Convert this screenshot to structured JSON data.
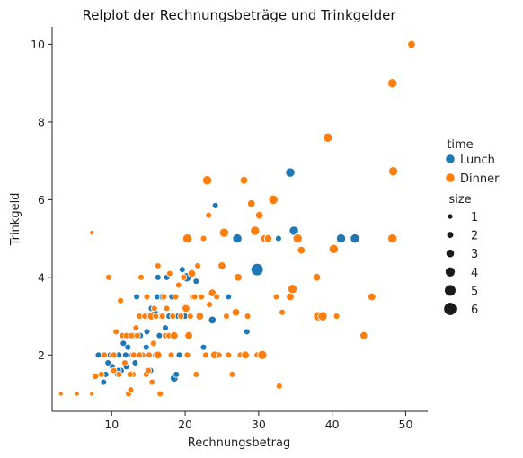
{
  "chart_data": {
    "type": "scatter",
    "title": "Relplot der Rechnungsbeträge und Trinkgelder",
    "xlabel": "Rechnungsbetrag",
    "ylabel": "Trinkgeld",
    "xlim": [
      1.9,
      53.0
    ],
    "ylim": [
      0.55,
      10.45
    ],
    "xticks": [
      10,
      20,
      30,
      40,
      50
    ],
    "yticks": [
      2,
      4,
      6,
      8,
      10
    ],
    "grid": false,
    "legend_position": "right",
    "hue": {
      "title": "time",
      "categories": [
        {
          "name": "Lunch",
          "color": "#1f77b4"
        },
        {
          "name": "Dinner",
          "color": "#ff7f0e"
        }
      ]
    },
    "size_legend": {
      "title": "size",
      "values": [
        1,
        2,
        3,
        4,
        5,
        6
      ]
    },
    "series": [
      {
        "name": "Lunch",
        "points": [
          [
            8.2,
            2.0,
            2
          ],
          [
            8.5,
            1.5,
            2
          ],
          [
            8.9,
            1.3,
            2
          ],
          [
            9.2,
            1.5,
            2
          ],
          [
            9.5,
            1.8,
            2
          ],
          [
            9.8,
            2.0,
            2
          ],
          [
            10.1,
            1.7,
            2
          ],
          [
            10.5,
            2.0,
            2
          ],
          [
            10.8,
            1.5,
            2
          ],
          [
            11.0,
            2.0,
            2
          ],
          [
            11.3,
            1.6,
            2
          ],
          [
            11.6,
            2.3,
            2
          ],
          [
            11.9,
            2.0,
            2
          ],
          [
            12.2,
            2.2,
            2
          ],
          [
            12.5,
            2.5,
            2
          ],
          [
            12.8,
            2.0,
            2
          ],
          [
            13.0,
            2.5,
            2
          ],
          [
            13.2,
            1.8,
            2
          ],
          [
            13.4,
            3.5,
            2
          ],
          [
            13.6,
            2.0,
            2
          ],
          [
            13.9,
            2.5,
            2
          ],
          [
            14.1,
            2.0,
            2
          ],
          [
            14.4,
            3.0,
            2
          ],
          [
            14.7,
            2.2,
            2
          ],
          [
            15.0,
            3.0,
            2
          ],
          [
            15.3,
            1.6,
            2
          ],
          [
            15.6,
            2.3,
            2
          ],
          [
            15.9,
            3.1,
            2
          ],
          [
            16.0,
            2.0,
            2
          ],
          [
            16.2,
            3.5,
            2
          ],
          [
            16.5,
            2.5,
            2
          ],
          [
            16.3,
            4.0,
            2
          ],
          [
            16.7,
            3.0,
            2
          ],
          [
            17.0,
            3.5,
            3
          ],
          [
            17.3,
            2.7,
            2
          ],
          [
            17.5,
            4.0,
            2
          ],
          [
            17.8,
            3.0,
            2
          ],
          [
            18.0,
            2.5,
            2
          ],
          [
            18.2,
            3.5,
            2
          ],
          [
            18.5,
            1.4,
            3
          ],
          [
            18.8,
            1.5,
            2
          ],
          [
            19.0,
            3.0,
            2
          ],
          [
            19.2,
            2.0,
            2
          ],
          [
            19.6,
            4.2,
            2
          ],
          [
            20.0,
            3.0,
            2
          ],
          [
            20.2,
            4.0,
            4
          ],
          [
            20.5,
            2.5,
            2
          ],
          [
            21.0,
            3.5,
            2
          ],
          [
            21.5,
            3.9,
            2
          ],
          [
            22.5,
            2.2,
            2
          ],
          [
            23.7,
            2.9,
            3
          ],
          [
            24.1,
            5.85,
            2
          ],
          [
            25.9,
            3.5,
            2
          ],
          [
            27.1,
            5.0,
            4
          ],
          [
            28.4,
            2.6,
            2
          ],
          [
            29.8,
            4.2,
            6
          ],
          [
            32.7,
            5.0,
            2
          ],
          [
            34.3,
            6.7,
            4
          ],
          [
            34.8,
            5.2,
            4
          ],
          [
            41.2,
            5.0,
            4
          ],
          [
            43.1,
            5.0,
            4
          ],
          [
            10.9,
            1.6,
            2
          ],
          [
            12.0,
            1.7,
            2
          ],
          [
            14.8,
            2.6,
            2
          ],
          [
            15.4,
            3.2,
            2
          ]
        ]
      },
      {
        "name": "Dinner",
        "points": [
          [
            3.1,
            1.0,
            1
          ],
          [
            5.3,
            1.0,
            1
          ],
          [
            7.3,
            1.0,
            1
          ],
          [
            7.3,
            5.15,
            1
          ],
          [
            7.8,
            1.45,
            2
          ],
          [
            8.6,
            1.5,
            2
          ],
          [
            9.0,
            2.0,
            2
          ],
          [
            9.6,
            4.0,
            2
          ],
          [
            10.1,
            2.0,
            2
          ],
          [
            10.3,
            1.6,
            2
          ],
          [
            10.6,
            2.6,
            2
          ],
          [
            11.0,
            1.5,
            2
          ],
          [
            11.2,
            3.4,
            2
          ],
          [
            11.5,
            2.5,
            2
          ],
          [
            11.8,
            1.8,
            2
          ],
          [
            12.0,
            2.5,
            2
          ],
          [
            12.3,
            1.0,
            2
          ],
          [
            12.6,
            1.1,
            2
          ],
          [
            12.7,
            2.5,
            2
          ],
          [
            13.0,
            2.0,
            2
          ],
          [
            13.3,
            2.7,
            2
          ],
          [
            13.5,
            2.5,
            2
          ],
          [
            13.8,
            3.0,
            2
          ],
          [
            14.0,
            4.0,
            2
          ],
          [
            14.2,
            2.0,
            2
          ],
          [
            14.5,
            3.0,
            2
          ],
          [
            14.7,
            1.5,
            2
          ],
          [
            14.8,
            3.5,
            2
          ],
          [
            15.0,
            1.6,
            2
          ],
          [
            15.1,
            2.0,
            2
          ],
          [
            15.4,
            3.0,
            3
          ],
          [
            15.5,
            1.3,
            2
          ],
          [
            15.7,
            2.3,
            2
          ],
          [
            15.8,
            3.2,
            2
          ],
          [
            16.0,
            3.0,
            2
          ],
          [
            16.3,
            4.3,
            2
          ],
          [
            16.3,
            2.0,
            3
          ],
          [
            16.6,
            1.0,
            2
          ],
          [
            16.9,
            3.0,
            2
          ],
          [
            17.1,
            3.5,
            2
          ],
          [
            17.3,
            2.5,
            2
          ],
          [
            17.5,
            3.2,
            2
          ],
          [
            17.8,
            2.5,
            2
          ],
          [
            17.9,
            4.1,
            2
          ],
          [
            18.1,
            2.0,
            2
          ],
          [
            18.3,
            3.0,
            2
          ],
          [
            18.5,
            2.5,
            3
          ],
          [
            18.7,
            3.5,
            2
          ],
          [
            19.1,
            3.8,
            2
          ],
          [
            19.4,
            3.0,
            2
          ],
          [
            19.8,
            4.0,
            2
          ],
          [
            20.1,
            3.2,
            3
          ],
          [
            20.3,
            2.0,
            2
          ],
          [
            20.5,
            2.5,
            3
          ],
          [
            20.7,
            3.0,
            2
          ],
          [
            20.9,
            4.1,
            3
          ],
          [
            21.0,
            3.5,
            2
          ],
          [
            21.3,
            3.5,
            2
          ],
          [
            21.5,
            1.5,
            2
          ],
          [
            21.7,
            4.3,
            2
          ],
          [
            22.0,
            3.0,
            3
          ],
          [
            22.2,
            3.5,
            2
          ],
          [
            22.5,
            5.0,
            2
          ],
          [
            22.8,
            2.0,
            2
          ],
          [
            23.0,
            6.5,
            4
          ],
          [
            23.2,
            5.6,
            2
          ],
          [
            23.3,
            3.3,
            2
          ],
          [
            23.7,
            3.6,
            3
          ],
          [
            24.0,
            2.0,
            3
          ],
          [
            24.3,
            3.5,
            2
          ],
          [
            24.6,
            2.0,
            2
          ],
          [
            25.0,
            4.3,
            3
          ],
          [
            25.3,
            5.15,
            4
          ],
          [
            25.6,
            3.0,
            2
          ],
          [
            25.9,
            2.0,
            2
          ],
          [
            26.4,
            1.5,
            2
          ],
          [
            26.9,
            3.1,
            3
          ],
          [
            27.2,
            4.0,
            3
          ],
          [
            27.5,
            2.0,
            2
          ],
          [
            28.0,
            6.5,
            3
          ],
          [
            28.2,
            2.0,
            3
          ],
          [
            28.5,
            3.0,
            2
          ],
          [
            29.0,
            5.9,
            3
          ],
          [
            29.5,
            5.2,
            4
          ],
          [
            29.8,
            2.0,
            2
          ],
          [
            30.1,
            5.6,
            3
          ],
          [
            30.5,
            2.0,
            4
          ],
          [
            30.8,
            5.0,
            3
          ],
          [
            31.3,
            5.0,
            3
          ],
          [
            32.0,
            6.0,
            4
          ],
          [
            32.4,
            3.5,
            2
          ],
          [
            32.8,
            1.2,
            2
          ],
          [
            33.2,
            3.1,
            2
          ],
          [
            34.3,
            3.5,
            3
          ],
          [
            34.6,
            3.7,
            4
          ],
          [
            35.3,
            5.0,
            4
          ],
          [
            35.8,
            4.7,
            3
          ],
          [
            37.9,
            4.0,
            3
          ],
          [
            38.1,
            3.0,
            4
          ],
          [
            38.7,
            3.0,
            4
          ],
          [
            39.4,
            7.6,
            4
          ],
          [
            40.2,
            4.73,
            4
          ],
          [
            40.6,
            3.0,
            2
          ],
          [
            44.3,
            2.5,
            3
          ],
          [
            45.4,
            3.5,
            3
          ],
          [
            48.2,
            9.0,
            4
          ],
          [
            48.2,
            5.0,
            4
          ],
          [
            48.3,
            6.73,
            4
          ],
          [
            50.8,
            10.0,
            3
          ],
          [
            20.3,
            5.0,
            4
          ],
          [
            12.9,
            1.5,
            2
          ],
          [
            10.3,
            2.0,
            2
          ],
          [
            12.5,
            1.5,
            2
          ],
          [
            13.8,
            2.0,
            2
          ]
        ]
      }
    ]
  }
}
